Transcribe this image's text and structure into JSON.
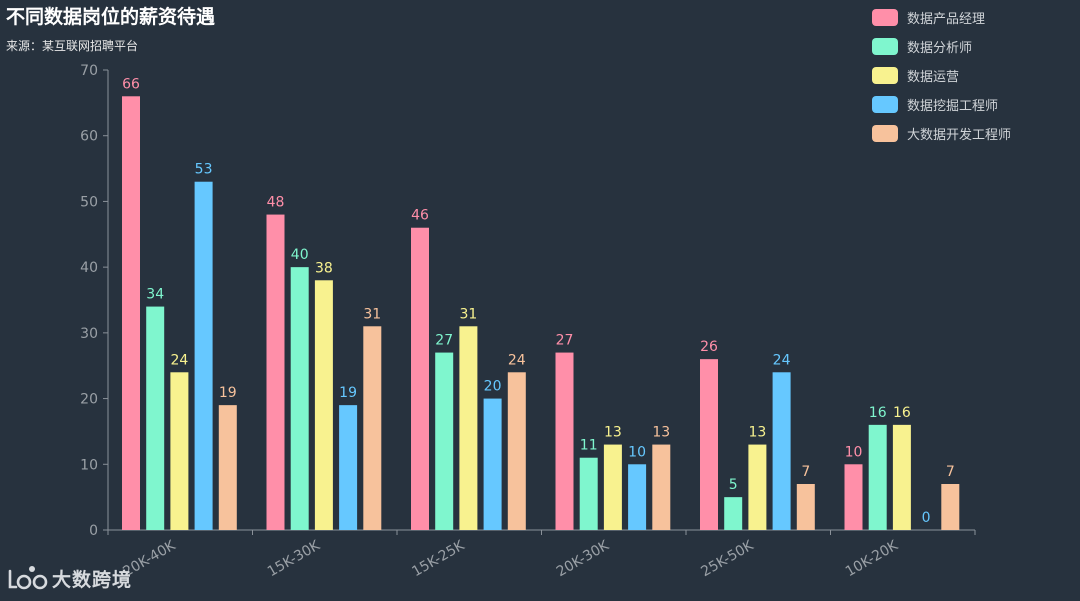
{
  "watermark": {
    "text": "大数跨境",
    "logo_icon": "ide-logo-icon"
  },
  "chart_data": {
    "type": "bar",
    "title": "不同数据岗位的薪资待遇",
    "subtitle": "来源：某互联网招聘平台",
    "categories": [
      "20K-40K",
      "15K-30K",
      "15K-25K",
      "20K-30K",
      "25K-50K",
      "10K-20K"
    ],
    "series": [
      {
        "name": "数据产品经理",
        "color": "#ff8fa9",
        "values": [
          66,
          48,
          46,
          27,
          26,
          10
        ]
      },
      {
        "name": "数据分析师",
        "color": "#7ff6ce",
        "values": [
          34,
          40,
          27,
          11,
          5,
          16
        ]
      },
      {
        "name": "数据运营",
        "color": "#f8f28f",
        "values": [
          24,
          38,
          31,
          13,
          13,
          16
        ]
      },
      {
        "name": "数据挖掘工程师",
        "color": "#66c8ff",
        "values": [
          53,
          19,
          20,
          10,
          24,
          0
        ]
      },
      {
        "name": "大数据开发工程师",
        "color": "#f7c29c",
        "values": [
          19,
          31,
          24,
          13,
          7,
          7
        ]
      }
    ],
    "ylim": [
      0,
      70
    ],
    "yticks": [
      0,
      10,
      20,
      30,
      40,
      50,
      60,
      70
    ],
    "xlabel": "",
    "ylabel": "",
    "grid": false,
    "legend_position": "top-right",
    "axis_color": "#8a9199",
    "tick_label_color": "#9aa0a6"
  }
}
